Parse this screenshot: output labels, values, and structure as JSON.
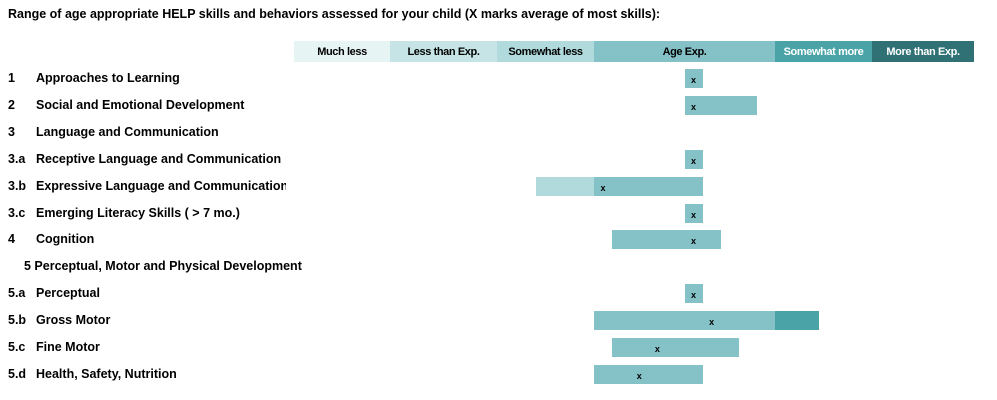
{
  "title": "Range of age appropriate HELP skills and behaviors assessed for your child (X marks average of most skills):",
  "scale": [
    {
      "label": "Much less",
      "color": "#e7f4f4",
      "text": "#000000"
    },
    {
      "label": "Less than Exp.",
      "color": "#c6e4e5",
      "text": "#000000"
    },
    {
      "label": "Somewhat less",
      "color": "#b0dadc",
      "text": "#000000"
    },
    {
      "label": "Age Exp.",
      "color": "#84c2c8",
      "text": "#000000"
    },
    {
      "label": "Somewhat more",
      "color": "#4aa3a7",
      "text": "#ffffff"
    },
    {
      "label": "More than Exp.",
      "color": "#2f7174",
      "text": "#ffffff"
    }
  ],
  "chart_data": {
    "type": "bar",
    "title": "Range of age appropriate HELP skills and behaviors assessed for your child (X marks average of most skills):",
    "scale_categories": [
      "Much less",
      "Less than Exp.",
      "Somewhat less",
      "Age Exp.",
      "Somewhat more",
      "More than Exp."
    ],
    "marker_text": "x",
    "rows": [
      {
        "num": "1",
        "label": "Approaches to Learning",
        "range": [
          3.5,
          3.6
        ],
        "avg": 3.55
      },
      {
        "num": "2",
        "label": "Social and Emotional Development",
        "range": [
          3.5,
          3.9
        ],
        "avg": 3.55
      },
      {
        "num": "3",
        "label": "Language and Communication",
        "range": null,
        "avg": null
      },
      {
        "num": "3.a",
        "label": "Receptive Language and Communication",
        "range": [
          3.5,
          3.6
        ],
        "avg": 3.55
      },
      {
        "num": "3.b",
        "label": "Expressive Language and Communication",
        "range": [
          2.4,
          3.6
        ],
        "avg": 3.05
      },
      {
        "num": "3.c",
        "label": "Emerging Literacy Skills ( > 7 mo.)",
        "range": [
          3.5,
          3.6
        ],
        "avg": 3.55
      },
      {
        "num": "4",
        "label": "Cognition",
        "range": [
          3.1,
          3.7
        ],
        "avg": 3.55
      },
      {
        "num": "",
        "label": "5 Perceptual, Motor and Physical Development",
        "range": null,
        "avg": null
      },
      {
        "num": "5.a",
        "label": "Perceptual",
        "range": [
          3.5,
          3.6
        ],
        "avg": 3.55
      },
      {
        "num": "5.b",
        "label": "Gross Motor",
        "range": [
          3.0,
          4.45
        ],
        "avg": 3.65
      },
      {
        "num": "5.c",
        "label": "Fine Motor",
        "range": [
          3.1,
          3.8
        ],
        "avg": 3.35
      },
      {
        "num": "5.d",
        "label": "Health, Safety, Nutrition",
        "range": [
          3.0,
          3.6
        ],
        "avg": 3.25
      }
    ]
  }
}
